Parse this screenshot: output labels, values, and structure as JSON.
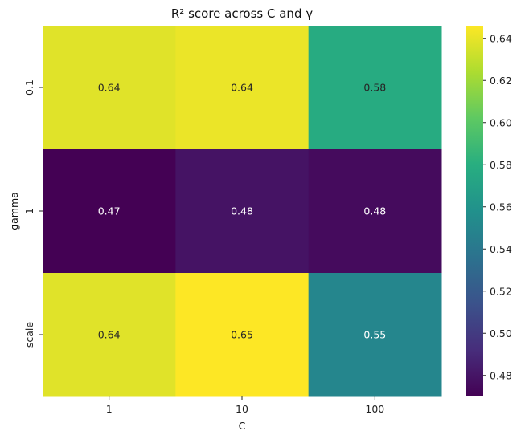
{
  "chart_data": {
    "type": "heatmap",
    "title": "R² score across C and γ",
    "xlabel": "C",
    "ylabel": "gamma",
    "x_categories": [
      "1",
      "10",
      "100"
    ],
    "y_categories": [
      "0.1",
      "1",
      "scale"
    ],
    "values": [
      [
        0.638,
        0.641,
        0.578
      ],
      [
        0.47,
        0.479,
        0.475
      ],
      [
        0.638,
        0.646,
        0.55
      ]
    ],
    "annotations": [
      [
        "0.64",
        "0.64",
        "0.58"
      ],
      [
        "0.47",
        "0.48",
        "0.48"
      ],
      [
        "0.64",
        "0.65",
        "0.55"
      ]
    ],
    "colormap": "viridis",
    "vmin": 0.47,
    "vmax": 0.646,
    "colorbar_ticks": [
      "0.48",
      "0.50",
      "0.52",
      "0.54",
      "0.56",
      "0.58",
      "0.60",
      "0.62",
      "0.64"
    ],
    "colorbar_tick_values": [
      0.48,
      0.5,
      0.52,
      0.54,
      0.56,
      0.58,
      0.6,
      0.62,
      0.64
    ]
  }
}
